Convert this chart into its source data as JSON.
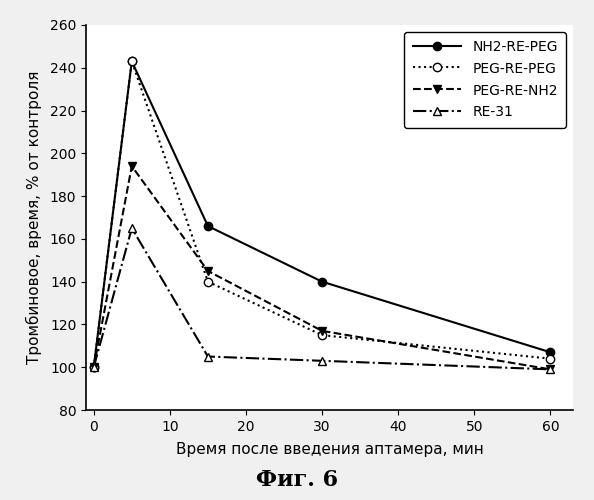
{
  "x": [
    0,
    5,
    15,
    30,
    60
  ],
  "series": {
    "NH2-RE-PEG": [
      100,
      243,
      166,
      140,
      107
    ],
    "PEG-RE-PEG": [
      100,
      243,
      140,
      115,
      104
    ],
    "PEG-RE-NH2": [
      100,
      194,
      145,
      117,
      99
    ],
    "RE-31": [
      100,
      165,
      105,
      103,
      99
    ]
  },
  "xlabel": "Время после введения аптамера, мин",
  "ylabel": "Тромбиновое, время, % от контроля",
  "figcaption": "Фиг. 6",
  "xlim": [
    -1,
    63
  ],
  "ylim": [
    80,
    260
  ],
  "yticks": [
    80,
    100,
    120,
    140,
    160,
    180,
    200,
    220,
    240,
    260
  ],
  "xticks": [
    0,
    10,
    20,
    30,
    40,
    50,
    60
  ],
  "background_color": "#f0f0f0",
  "plot_bg_color": "#ffffff",
  "line_color": "#000000",
  "styles": {
    "NH2-RE-PEG": {
      "linestyle": "-",
      "marker": "o",
      "mfc": "black",
      "mec": "black"
    },
    "PEG-RE-PEG": {
      "linestyle": ":",
      "marker": "o",
      "mfc": "white",
      "mec": "black"
    },
    "PEG-RE-NH2": {
      "linestyle": "--",
      "marker": "v",
      "mfc": "black",
      "mec": "black"
    },
    "RE-31": {
      "linestyle": "-.",
      "marker": "^",
      "mfc": "white",
      "mec": "black"
    }
  }
}
